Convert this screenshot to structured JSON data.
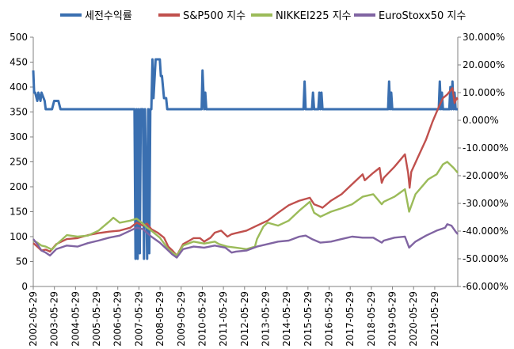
{
  "chart_data": {
    "type": "line",
    "title": "",
    "legend_position": "top",
    "series": [
      {
        "name": "세전수익률",
        "axis": "right",
        "color": "#3a6fb0",
        "x": [
          2002.41,
          2002.45,
          2002.5,
          2002.6,
          2002.65,
          2002.75,
          2002.8,
          2002.95,
          2003.0,
          2003.3,
          2003.4,
          2003.6,
          2003.7,
          2004.0,
          2005.0,
          2006.0,
          2007.0,
          2007.2,
          2007.25,
          2007.3,
          2007.35,
          2007.4,
          2007.45,
          2007.5,
          2007.55,
          2007.6,
          2007.65,
          2007.7,
          2007.8,
          2007.85,
          2007.9,
          2007.95,
          2008.0,
          2008.05,
          2008.1,
          2008.2,
          2008.25,
          2008.3,
          2008.35,
          2008.4,
          2008.45,
          2008.5,
          2008.6,
          2008.7,
          2008.75,
          2008.8,
          2008.9,
          2009.0,
          2010.0,
          2010.38,
          2010.42,
          2010.5,
          2010.55,
          2010.6,
          2011.0,
          2012.0,
          2013.0,
          2014.0,
          2015.0,
          2015.2,
          2015.25,
          2015.3,
          2015.35,
          2015.6,
          2015.65,
          2015.7,
          2015.8,
          2015.9,
          2015.95,
          2016.0,
          2016.05,
          2016.1,
          2017.0,
          2018.0,
          2019.0,
          2019.2,
          2019.25,
          2019.3,
          2019.35,
          2019.4,
          2020.0,
          2021.0,
          2021.6,
          2021.65,
          2021.7,
          2021.75,
          2021.8,
          2022.1,
          2022.15,
          2022.2,
          2022.25,
          2022.3,
          2022.35,
          2022.4,
          2022.45,
          2022.5
        ],
        "y": [
          18,
          10,
          10,
          7,
          10,
          7,
          10,
          7,
          4,
          4,
          7,
          7,
          4,
          4,
          4,
          4,
          4,
          4,
          -50,
          4,
          -50,
          4,
          -48,
          4,
          4,
          4,
          -50,
          4,
          -50,
          4,
          -48,
          4,
          4,
          22,
          8,
          22,
          22,
          22,
          22,
          22,
          16,
          16,
          8,
          8,
          4,
          4,
          4,
          4,
          4,
          4,
          18,
          4,
          10,
          4,
          4,
          4,
          4,
          4,
          4,
          4,
          14,
          4,
          4,
          4,
          10,
          4,
          4,
          4,
          10,
          4,
          10,
          4,
          4,
          4,
          4,
          4,
          14,
          4,
          10,
          4,
          4,
          4,
          4,
          14,
          4,
          10,
          4,
          4,
          12,
          4,
          14,
          4,
          10,
          4,
          4,
          4
        ]
      },
      {
        "name": "S&P500 지수",
        "axis": "left",
        "color": "#c0504d",
        "x": [
          2002.41,
          2002.6,
          2002.8,
          2003.0,
          2003.2,
          2003.5,
          2004.0,
          2004.5,
          2005.0,
          2005.5,
          2006.0,
          2006.5,
          2007.0,
          2007.3,
          2007.6,
          2007.8,
          2008.0,
          2008.3,
          2008.6,
          2008.8,
          2009.0,
          2009.2,
          2009.5,
          2009.8,
          2010.0,
          2010.3,
          2010.5,
          2010.8,
          2011.0,
          2011.3,
          2011.6,
          2011.8,
          2012.0,
          2012.5,
          2013.0,
          2013.5,
          2014.0,
          2014.5,
          2015.0,
          2015.5,
          2015.7,
          2016.0,
          2016.1,
          2016.5,
          2017.0,
          2017.5,
          2018.0,
          2018.1,
          2018.5,
          2018.8,
          2018.9,
          2019.0,
          2019.5,
          2020.0,
          2020.15,
          2020.22,
          2020.3,
          2020.6,
          2021.0,
          2021.3,
          2021.6,
          2021.8,
          2022.0,
          2022.1,
          2022.25,
          2022.35,
          2022.45,
          2022.5
        ],
        "y": [
          87,
          80,
          72,
          74,
          70,
          85,
          95,
          97,
          103,
          107,
          110,
          112,
          118,
          128,
          122,
          126,
          115,
          108,
          98,
          80,
          72,
          62,
          85,
          92,
          97,
          97,
          90,
          98,
          108,
          112,
          100,
          105,
          107,
          112,
          122,
          132,
          148,
          163,
          172,
          178,
          165,
          160,
          158,
          172,
          185,
          205,
          225,
          213,
          228,
          238,
          208,
          218,
          240,
          265,
          228,
          198,
          230,
          258,
          295,
          330,
          360,
          378,
          385,
          390,
          398,
          368,
          378,
          375
        ]
      },
      {
        "name": "NIKKEI225 지수",
        "axis": "left",
        "color": "#9bbb59",
        "x": [
          2002.41,
          2002.6,
          2002.8,
          2003.0,
          2003.3,
          2003.5,
          2004.0,
          2004.5,
          2005.0,
          2005.5,
          2006.0,
          2006.2,
          2006.5,
          2007.0,
          2007.3,
          2007.6,
          2007.8,
          2008.0,
          2008.4,
          2008.8,
          2009.0,
          2009.2,
          2009.5,
          2010.0,
          2010.5,
          2011.0,
          2011.2,
          2011.6,
          2012.0,
          2012.5,
          2012.9,
          2013.0,
          2013.3,
          2013.5,
          2014.0,
          2014.5,
          2015.0,
          2015.5,
          2015.7,
          2016.0,
          2016.5,
          2017.0,
          2017.5,
          2018.0,
          2018.5,
          2018.9,
          2019.0,
          2019.5,
          2020.0,
          2020.2,
          2020.5,
          2021.0,
          2021.1,
          2021.5,
          2021.8,
          2022.0,
          2022.3,
          2022.5
        ],
        "y": [
          92,
          88,
          82,
          80,
          74,
          84,
          103,
          100,
          102,
          112,
          130,
          138,
          128,
          132,
          136,
          126,
          118,
          112,
          98,
          75,
          68,
          62,
          82,
          90,
          86,
          90,
          85,
          80,
          78,
          75,
          80,
          95,
          120,
          128,
          122,
          132,
          152,
          170,
          148,
          140,
          150,
          157,
          165,
          180,
          185,
          165,
          170,
          180,
          195,
          150,
          185,
          210,
          215,
          225,
          245,
          250,
          238,
          228
        ]
      },
      {
        "name": "EuroStoxx50 지수",
        "axis": "left",
        "color": "#8064a2",
        "x": [
          2002.41,
          2002.6,
          2002.8,
          2003.0,
          2003.2,
          2003.5,
          2004.0,
          2004.5,
          2005.0,
          2005.5,
          2006.0,
          2006.5,
          2007.0,
          2007.3,
          2007.6,
          2008.0,
          2008.4,
          2008.8,
          2009.0,
          2009.2,
          2009.5,
          2010.0,
          2010.5,
          2011.0,
          2011.5,
          2011.8,
          2012.0,
          2012.5,
          2013.0,
          2013.5,
          2014.0,
          2014.5,
          2015.0,
          2015.3,
          2015.6,
          2016.0,
          2016.5,
          2017.0,
          2017.5,
          2018.0,
          2018.5,
          2018.9,
          2019.0,
          2019.5,
          2020.0,
          2020.2,
          2020.5,
          2021.0,
          2021.5,
          2021.9,
          2022.0,
          2022.2,
          2022.4,
          2022.5
        ],
        "y": [
          95,
          85,
          72,
          68,
          62,
          75,
          82,
          80,
          87,
          92,
          98,
          102,
          112,
          118,
          115,
          100,
          88,
          72,
          64,
          58,
          75,
          80,
          78,
          82,
          78,
          68,
          70,
          72,
          80,
          85,
          90,
          92,
          100,
          102,
          95,
          88,
          90,
          95,
          100,
          98,
          98,
          88,
          92,
          98,
          100,
          78,
          90,
          102,
          112,
          118,
          125,
          122,
          110,
          105
        ]
      }
    ],
    "x_tick_labels": [
      "2002-05-29",
      "2003-05-29",
      "2004-05-29",
      "2005-05-29",
      "2006-05-29",
      "2007-05-29",
      "2008-05-29",
      "2009-05-29",
      "2010-05-29",
      "2011-05-29",
      "2012-05-29",
      "2013-05-29",
      "2014-05-29",
      "2015-05-29",
      "2016-05-29",
      "2017-05-29",
      "2018-05-29",
      "2019-05-29",
      "2020-05-29",
      "2021-05-29"
    ],
    "x_range": [
      2002.41,
      2022.5
    ],
    "ylim_left": [
      0,
      500
    ],
    "yticks_left": [
      0,
      50,
      100,
      150,
      200,
      250,
      300,
      350,
      400,
      450,
      500
    ],
    "ylim_right": [
      -60,
      30
    ],
    "yticks_right": [
      "-60.000%",
      "-50.000%",
      "-40.000%",
      "-30.000%",
      "-20.000%",
      "-10.000%",
      "0.000%",
      "10.000%",
      "20.000%",
      "30.000%"
    ],
    "yticks_right_values": [
      -60,
      -50,
      -40,
      -30,
      -20,
      -10,
      0,
      10,
      20,
      30
    ],
    "grid": false
  }
}
